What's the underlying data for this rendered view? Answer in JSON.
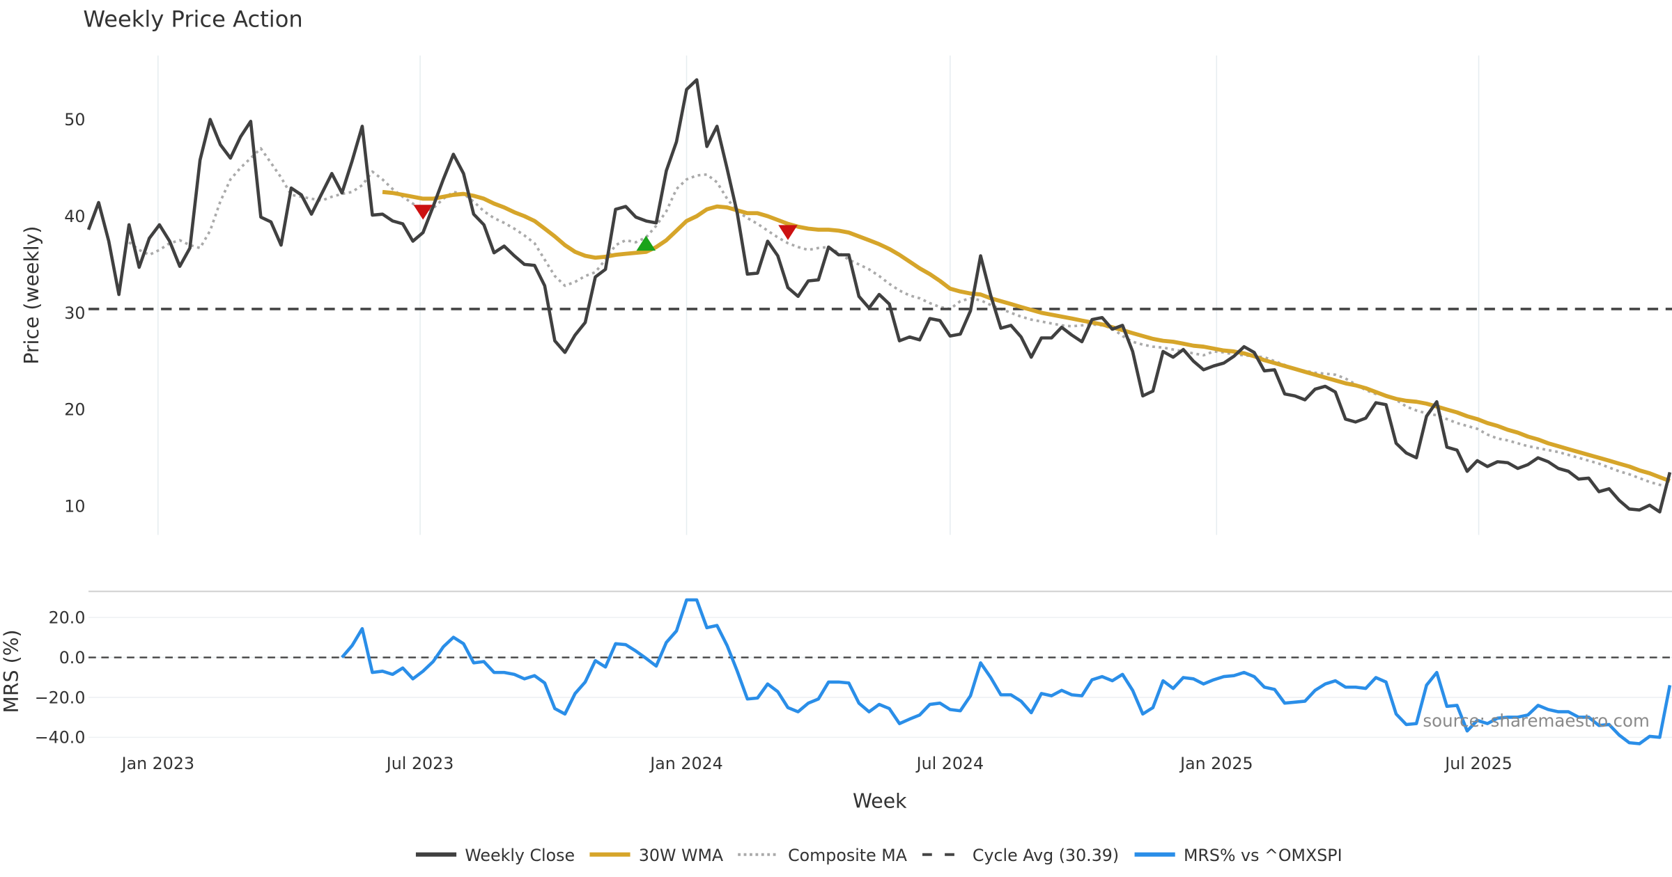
{
  "chart_data": [
    {
      "type": "line",
      "title": "Weekly Price Action",
      "xlabel": "Week",
      "ylabel": "Price (weekly)",
      "x_start": "2022-11-14",
      "x_step_days": 7,
      "ylim": [
        7,
        57
      ],
      "yticks": [
        10,
        20,
        30,
        40,
        50
      ],
      "xticks": [
        {
          "date": "2023-01-01",
          "label": "Jan 2023"
        },
        {
          "date": "2023-07-01",
          "label": "Jul 2023"
        },
        {
          "date": "2024-01-01",
          "label": "Jan 2024"
        },
        {
          "date": "2024-07-01",
          "label": "Jul 2024"
        },
        {
          "date": "2025-01-01",
          "label": "Jan 2025"
        },
        {
          "date": "2025-07-01",
          "label": "Jul 2025"
        }
      ],
      "grid": "vertical",
      "series": [
        {
          "name": "Weekly Close",
          "color": "#404040",
          "style": "solid",
          "values": [
            38.6,
            41.4,
            37.4,
            31.9,
            39.1,
            34.7,
            37.7,
            39.1,
            37.4,
            34.8,
            36.7,
            45.8,
            50.0,
            47.4,
            46.0,
            48.2,
            49.8,
            39.9,
            39.4,
            37.0,
            42.9,
            42.2,
            40.2,
            42.3,
            44.4,
            42.4,
            45.7,
            49.3,
            40.1,
            40.2,
            39.5,
            39.2,
            37.4,
            38.3,
            41.0,
            43.8,
            46.4,
            44.4,
            40.2,
            39.1,
            36.2,
            36.9,
            35.9,
            35.0,
            34.9,
            32.8,
            27.1,
            25.9,
            27.7,
            29.0,
            33.7,
            34.5,
            40.7,
            41.0,
            39.9,
            39.5,
            39.3,
            44.7,
            47.7,
            53.1,
            54.1,
            47.2,
            49.3,
            44.9,
            40.3,
            34.0,
            34.1,
            37.4,
            35.9,
            32.6,
            31.7,
            33.3,
            33.4,
            36.8,
            36.0,
            36.0,
            31.7,
            30.5,
            31.9,
            30.9,
            27.1,
            27.5,
            27.2,
            29.4,
            29.2,
            27.6,
            27.8,
            30.2,
            35.9,
            31.8,
            28.4,
            28.7,
            27.5,
            25.4,
            27.4,
            27.4,
            28.5,
            27.7,
            27.0,
            29.3,
            29.5,
            28.3,
            28.7,
            26.0,
            21.4,
            21.9,
            26.0,
            25.4,
            26.2,
            25.0,
            24.1,
            24.5,
            24.8,
            25.5,
            26.5,
            25.9,
            24.0,
            24.1,
            21.6,
            21.4,
            21.0,
            22.1,
            22.4,
            21.8,
            19.0,
            18.7,
            19.1,
            20.7,
            20.5,
            16.5,
            15.5,
            15.0,
            19.3,
            20.8,
            16.1,
            15.8,
            13.6,
            14.7,
            14.1,
            14.6,
            14.5,
            13.9,
            14.3,
            15.0,
            14.6,
            13.9,
            13.6,
            12.8,
            12.9,
            11.5,
            11.8,
            10.6,
            9.7,
            9.6,
            10.1,
            9.4,
            13.5
          ]
        },
        {
          "name": "30W WMA",
          "color": "#d6a52a",
          "style": "solid",
          "values": [
            42.5,
            42.4,
            42.2,
            42.0,
            41.8,
            41.8,
            42.0,
            42.2,
            42.3,
            42.1,
            41.8,
            41.3,
            40.9,
            40.4,
            40.0,
            39.5,
            38.7,
            37.9,
            37.0,
            36.3,
            35.9,
            35.7,
            35.8,
            36.0,
            36.1,
            36.2,
            36.3,
            36.8,
            37.5,
            38.5,
            39.5,
            40.0,
            40.7,
            41.0,
            40.9,
            40.6,
            40.3,
            40.3,
            40.0,
            39.6,
            39.2,
            38.9,
            38.7,
            38.6,
            38.6,
            38.5,
            38.3,
            37.9,
            37.5,
            37.1,
            36.6,
            36.0,
            35.3,
            34.6,
            34.0,
            33.3,
            32.5,
            32.2,
            32.0,
            31.9,
            31.5,
            31.2,
            30.9,
            30.6,
            30.3,
            30.0,
            29.8,
            29.6,
            29.4,
            29.2,
            29.0,
            28.8,
            28.5,
            28.2,
            27.9,
            27.6,
            27.3,
            27.1,
            27.0,
            26.8,
            26.6,
            26.5,
            26.3,
            26.1,
            26.0,
            25.8,
            25.5,
            25.1,
            24.8,
            24.5,
            24.2,
            23.9,
            23.6,
            23.3,
            23.0,
            22.7,
            22.5,
            22.2,
            21.8,
            21.4,
            21.1,
            20.9,
            20.8,
            20.6,
            20.3,
            20.0,
            19.7,
            19.3,
            19.0,
            18.6,
            18.3,
            17.9,
            17.6,
            17.2,
            16.9,
            16.5,
            16.2,
            15.9,
            15.6,
            15.3,
            15.0,
            14.7,
            14.4,
            14.1,
            13.7,
            13.4,
            13.0,
            12.6
          ]
        },
        {
          "name": "Composite MA",
          "color": "#aaaaaa",
          "style": "dotted",
          "values": [
            37.3,
            36.5,
            36.0,
            36.5,
            37.2,
            37.5,
            37.0,
            36.7,
            38.5,
            41.5,
            43.8,
            45.0,
            46.0,
            47.0,
            45.5,
            44.0,
            42.2,
            42.0,
            41.8,
            41.6,
            42.0,
            42.3,
            42.5,
            43.2,
            44.6,
            43.8,
            42.8,
            42.0,
            41.3,
            40.5,
            40.8,
            41.8,
            42.5,
            42.3,
            41.5,
            40.5,
            39.8,
            39.3,
            38.7,
            38.0,
            37.2,
            35.5,
            33.8,
            32.8,
            33.2,
            33.8,
            34.2,
            35.5,
            37.0,
            37.5,
            37.3,
            37.8,
            39.0,
            40.5,
            42.8,
            43.8,
            44.2,
            44.3,
            43.5,
            41.8,
            40.5,
            39.8,
            39.2,
            38.5,
            37.8,
            37.2,
            36.8,
            36.5,
            36.7,
            36.8,
            36.2,
            35.5,
            35.0,
            34.5,
            33.8,
            33.0,
            32.3,
            31.8,
            31.5,
            31.0,
            30.6,
            30.4,
            31.2,
            31.5,
            31.3,
            30.8,
            30.4,
            30.0,
            29.6,
            29.3,
            29.1,
            28.9,
            28.7,
            28.6,
            28.7,
            28.8,
            28.7,
            28.4,
            27.6,
            27.0,
            26.7,
            26.5,
            26.4,
            26.2,
            26.0,
            25.8,
            25.6,
            26.0,
            25.9,
            25.7,
            25.6,
            25.5,
            25.4,
            25.0,
            24.6,
            24.2,
            24.0,
            23.8,
            23.7,
            23.6,
            23.2,
            22.6,
            22.0,
            21.6,
            21.5,
            21.0,
            20.3,
            19.9,
            19.6,
            19.4,
            19.0,
            18.6,
            18.3,
            18.0,
            17.4,
            17.0,
            16.8,
            16.5,
            16.2,
            16.0,
            15.8,
            15.6,
            15.3,
            15.0,
            14.7,
            14.4,
            14.0,
            13.6,
            13.3,
            12.9,
            12.5,
            12.2,
            12.0
          ]
        },
        {
          "name": "Cycle Avg (30.39)",
          "color": "#444444",
          "style": "dashed",
          "value": 30.39
        }
      ],
      "markers": [
        {
          "type": "sell",
          "week_index": 33,
          "value": 40.4,
          "color": "#cc1111"
        },
        {
          "type": "buy",
          "week_index": 55,
          "value": 37.2,
          "color": "#1aa31a"
        },
        {
          "type": "sell",
          "week_index": 69,
          "value": 38.3,
          "color": "#cc1111"
        }
      ]
    },
    {
      "type": "line",
      "ylabel": "MRS (%)",
      "ylim": [
        -45,
        33
      ],
      "yticks": [
        {
          "v": 20,
          "label": "20.0"
        },
        {
          "v": 0,
          "label": "0.0"
        },
        {
          "v": -20,
          "label": "−20.0"
        },
        {
          "v": -40,
          "label": "−40.0"
        }
      ],
      "zero_line": 0,
      "series": [
        {
          "name": "MRS% vs ^OMXSPI",
          "color": "#2a8ee8",
          "style": "solid",
          "values": [
            0,
            5.9,
            14.4,
            -7.5,
            -6.9,
            -8.5,
            -5.3,
            -10.7,
            -6.9,
            -2.1,
            5.3,
            10.1,
            6.9,
            -2.7,
            -2.1,
            -7.5,
            -7.5,
            -8.5,
            -10.7,
            -9.1,
            -12.8,
            -25.6,
            -28.3,
            -18.1,
            -12.3,
            -1.6,
            -4.8,
            6.9,
            6.4,
            3.2,
            -0.5,
            -4.3,
            7.5,
            13.3,
            28.8,
            28.8,
            14.9,
            16.0,
            5.9,
            -6.9,
            -20.8,
            -20.3,
            -13.3,
            -17.1,
            -25.1,
            -27.2,
            -22.9,
            -20.8,
            -12.3,
            -12.3,
            -12.8,
            -22.9,
            -27.2,
            -23.5,
            -25.6,
            -33.1,
            -30.9,
            -28.8,
            -23.5,
            -22.9,
            -26.1,
            -26.7,
            -19.2,
            -2.7,
            -10.1,
            -18.7,
            -18.7,
            -21.9,
            -27.7,
            -18.1,
            -19.2,
            -16.5,
            -18.7,
            -19.2,
            -11.2,
            -9.6,
            -11.7,
            -8.5,
            -16.5,
            -28.3,
            -25.1,
            -11.7,
            -15.5,
            -10.1,
            -10.7,
            -13.3,
            -11.2,
            -9.6,
            -9.1,
            -7.5,
            -9.6,
            -14.9,
            -16.0,
            -22.9,
            -22.4,
            -21.9,
            -16.5,
            -13.3,
            -11.7,
            -14.9,
            -14.9,
            -15.5,
            -10.1,
            -12.3,
            -28.3,
            -33.6,
            -33.1,
            -13.9,
            -7.5,
            -24.5,
            -24.0,
            -36.8,
            -31.5,
            -33.1,
            -30.4,
            -29.9,
            -29.9,
            -28.8,
            -24.0,
            -26.1,
            -27.2,
            -27.2,
            -29.9,
            -29.9,
            -34.1,
            -33.6,
            -38.9,
            -42.7,
            -43.2,
            -39.5,
            -40.0,
            -13.9
          ]
        }
      ],
      "watermark": "source: sharemaestro.com"
    }
  ],
  "legend": {
    "placement": "bottom-center",
    "items": [
      {
        "label": "Weekly Close",
        "color": "#404040",
        "style": "solid"
      },
      {
        "label": "30W WMA",
        "color": "#d6a52a",
        "style": "solid"
      },
      {
        "label": "Composite MA",
        "color": "#aaaaaa",
        "style": "dotted"
      },
      {
        "label": "Cycle Avg (30.39)",
        "color": "#444444",
        "style": "dashed"
      },
      {
        "label": "MRS% vs ^OMXSPI",
        "color": "#2a8ee8",
        "style": "solid"
      }
    ]
  }
}
